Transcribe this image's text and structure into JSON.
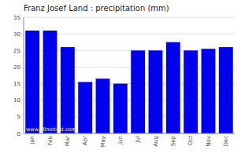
{
  "chart_data": {
    "type": "bar",
    "title": "Franz Josef Land : precipitation (mm)",
    "categories": [
      "Jan",
      "Feb",
      "Mar",
      "Apr",
      "May",
      "Jun",
      "Jul",
      "Aug",
      "Sep",
      "Oct",
      "Nov",
      "Dec"
    ],
    "values": [
      31,
      31,
      26,
      15.5,
      16.5,
      15,
      25,
      25,
      27.5,
      25,
      25.5,
      26
    ],
    "color": "#0000EE",
    "ylim": [
      0,
      35
    ],
    "yticks": [
      0,
      5,
      10,
      15,
      20,
      25,
      30,
      35
    ],
    "grid": true,
    "annotation": "www.allmetsat.com"
  }
}
